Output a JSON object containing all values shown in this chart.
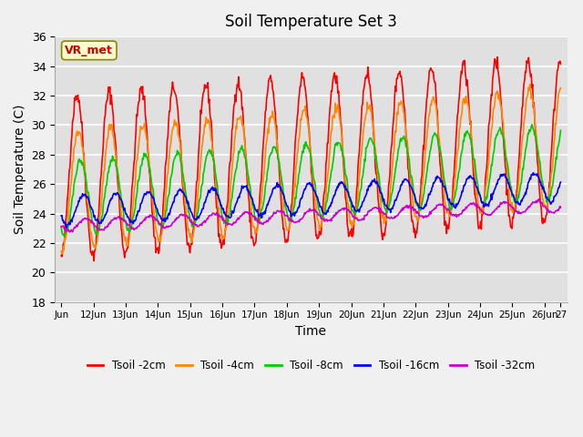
{
  "title": "Soil Temperature Set 3",
  "xlabel": "Time",
  "ylabel": "Soil Temperature (C)",
  "ylim": [
    18,
    36
  ],
  "yticks": [
    18,
    20,
    22,
    24,
    26,
    28,
    30,
    32,
    34,
    36
  ],
  "xtick_positions": [
    0,
    1,
    2,
    3,
    4,
    5,
    6,
    7,
    8,
    9,
    10,
    11,
    12,
    13,
    14,
    15,
    15.5
  ],
  "xtick_labels": [
    "Jun",
    "12Jun",
    "13Jun",
    "14Jun",
    "15Jun",
    "16Jun",
    "17Jun",
    "18Jun",
    "19Jun",
    "20Jun",
    "21Jun",
    "22Jun",
    "23Jun",
    "24Jun",
    "25Jun",
    "26Jun",
    "27"
  ],
  "series_colors": [
    "#ff0000",
    "#ff8800",
    "#00cc00",
    "#0000ff",
    "#cc00cc"
  ],
  "series_labels": [
    "Tsoil -2cm",
    "Tsoil -4cm",
    "Tsoil -8cm",
    "Tsoil -16cm",
    "Tsoil -32cm"
  ],
  "annotation_text": "VR_met",
  "fig_facecolor": "#f0f0f0",
  "ax_facecolor": "#e0e0e0",
  "linewidth": 1.2,
  "n_points": 750
}
